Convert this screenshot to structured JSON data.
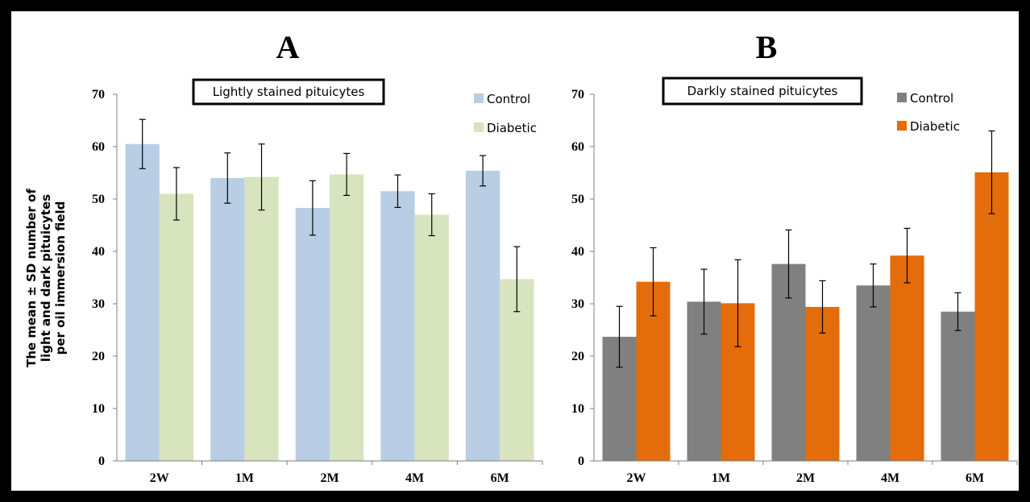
{
  "y_axis_label": [
    "The mean ± SD number of",
    "light and dark pituicytes",
    "per oil immersion field"
  ],
  "chart_data": [
    {
      "type": "bar",
      "panel_label": "A",
      "title": "Lightly stained pituicytes",
      "categories": [
        "2W",
        "1M",
        "2M",
        "4M",
        "6M"
      ],
      "ylim": [
        0,
        70
      ],
      "yticks": [
        0,
        10,
        20,
        30,
        40,
        50,
        60,
        70
      ],
      "grid": false,
      "legend_position": "top-right",
      "series": [
        {
          "name": "Control",
          "color": "#b9cde5",
          "values": [
            60.5,
            54,
            48.3,
            51.5,
            55.4
          ],
          "errors": [
            4.7,
            4.8,
            5.2,
            3.1,
            2.9
          ]
        },
        {
          "name": "Diabetic",
          "color": "#d7e4bd",
          "values": [
            51,
            54.2,
            54.7,
            47,
            34.7
          ],
          "errors": [
            5,
            6.3,
            4,
            4,
            6.2
          ]
        }
      ]
    },
    {
      "type": "bar",
      "panel_label": "B",
      "title": "Darkly stained pituicytes",
      "categories": [
        "2W",
        "1M",
        "2M",
        "4M",
        "6M"
      ],
      "ylim": [
        0,
        70
      ],
      "yticks": [
        0,
        10,
        20,
        30,
        40,
        50,
        60,
        70
      ],
      "grid": false,
      "legend_position": "top-right",
      "series": [
        {
          "name": "Control",
          "color": "#808080",
          "values": [
            23.7,
            30.4,
            37.6,
            33.5,
            28.5
          ],
          "errors": [
            5.8,
            6.2,
            6.5,
            4.1,
            3.6
          ]
        },
        {
          "name": "Diabetic",
          "color": "#e46c0a",
          "values": [
            34.2,
            30.1,
            29.4,
            39.2,
            55.1
          ],
          "errors": [
            6.5,
            8.3,
            5,
            5.2,
            7.9
          ]
        }
      ]
    }
  ]
}
